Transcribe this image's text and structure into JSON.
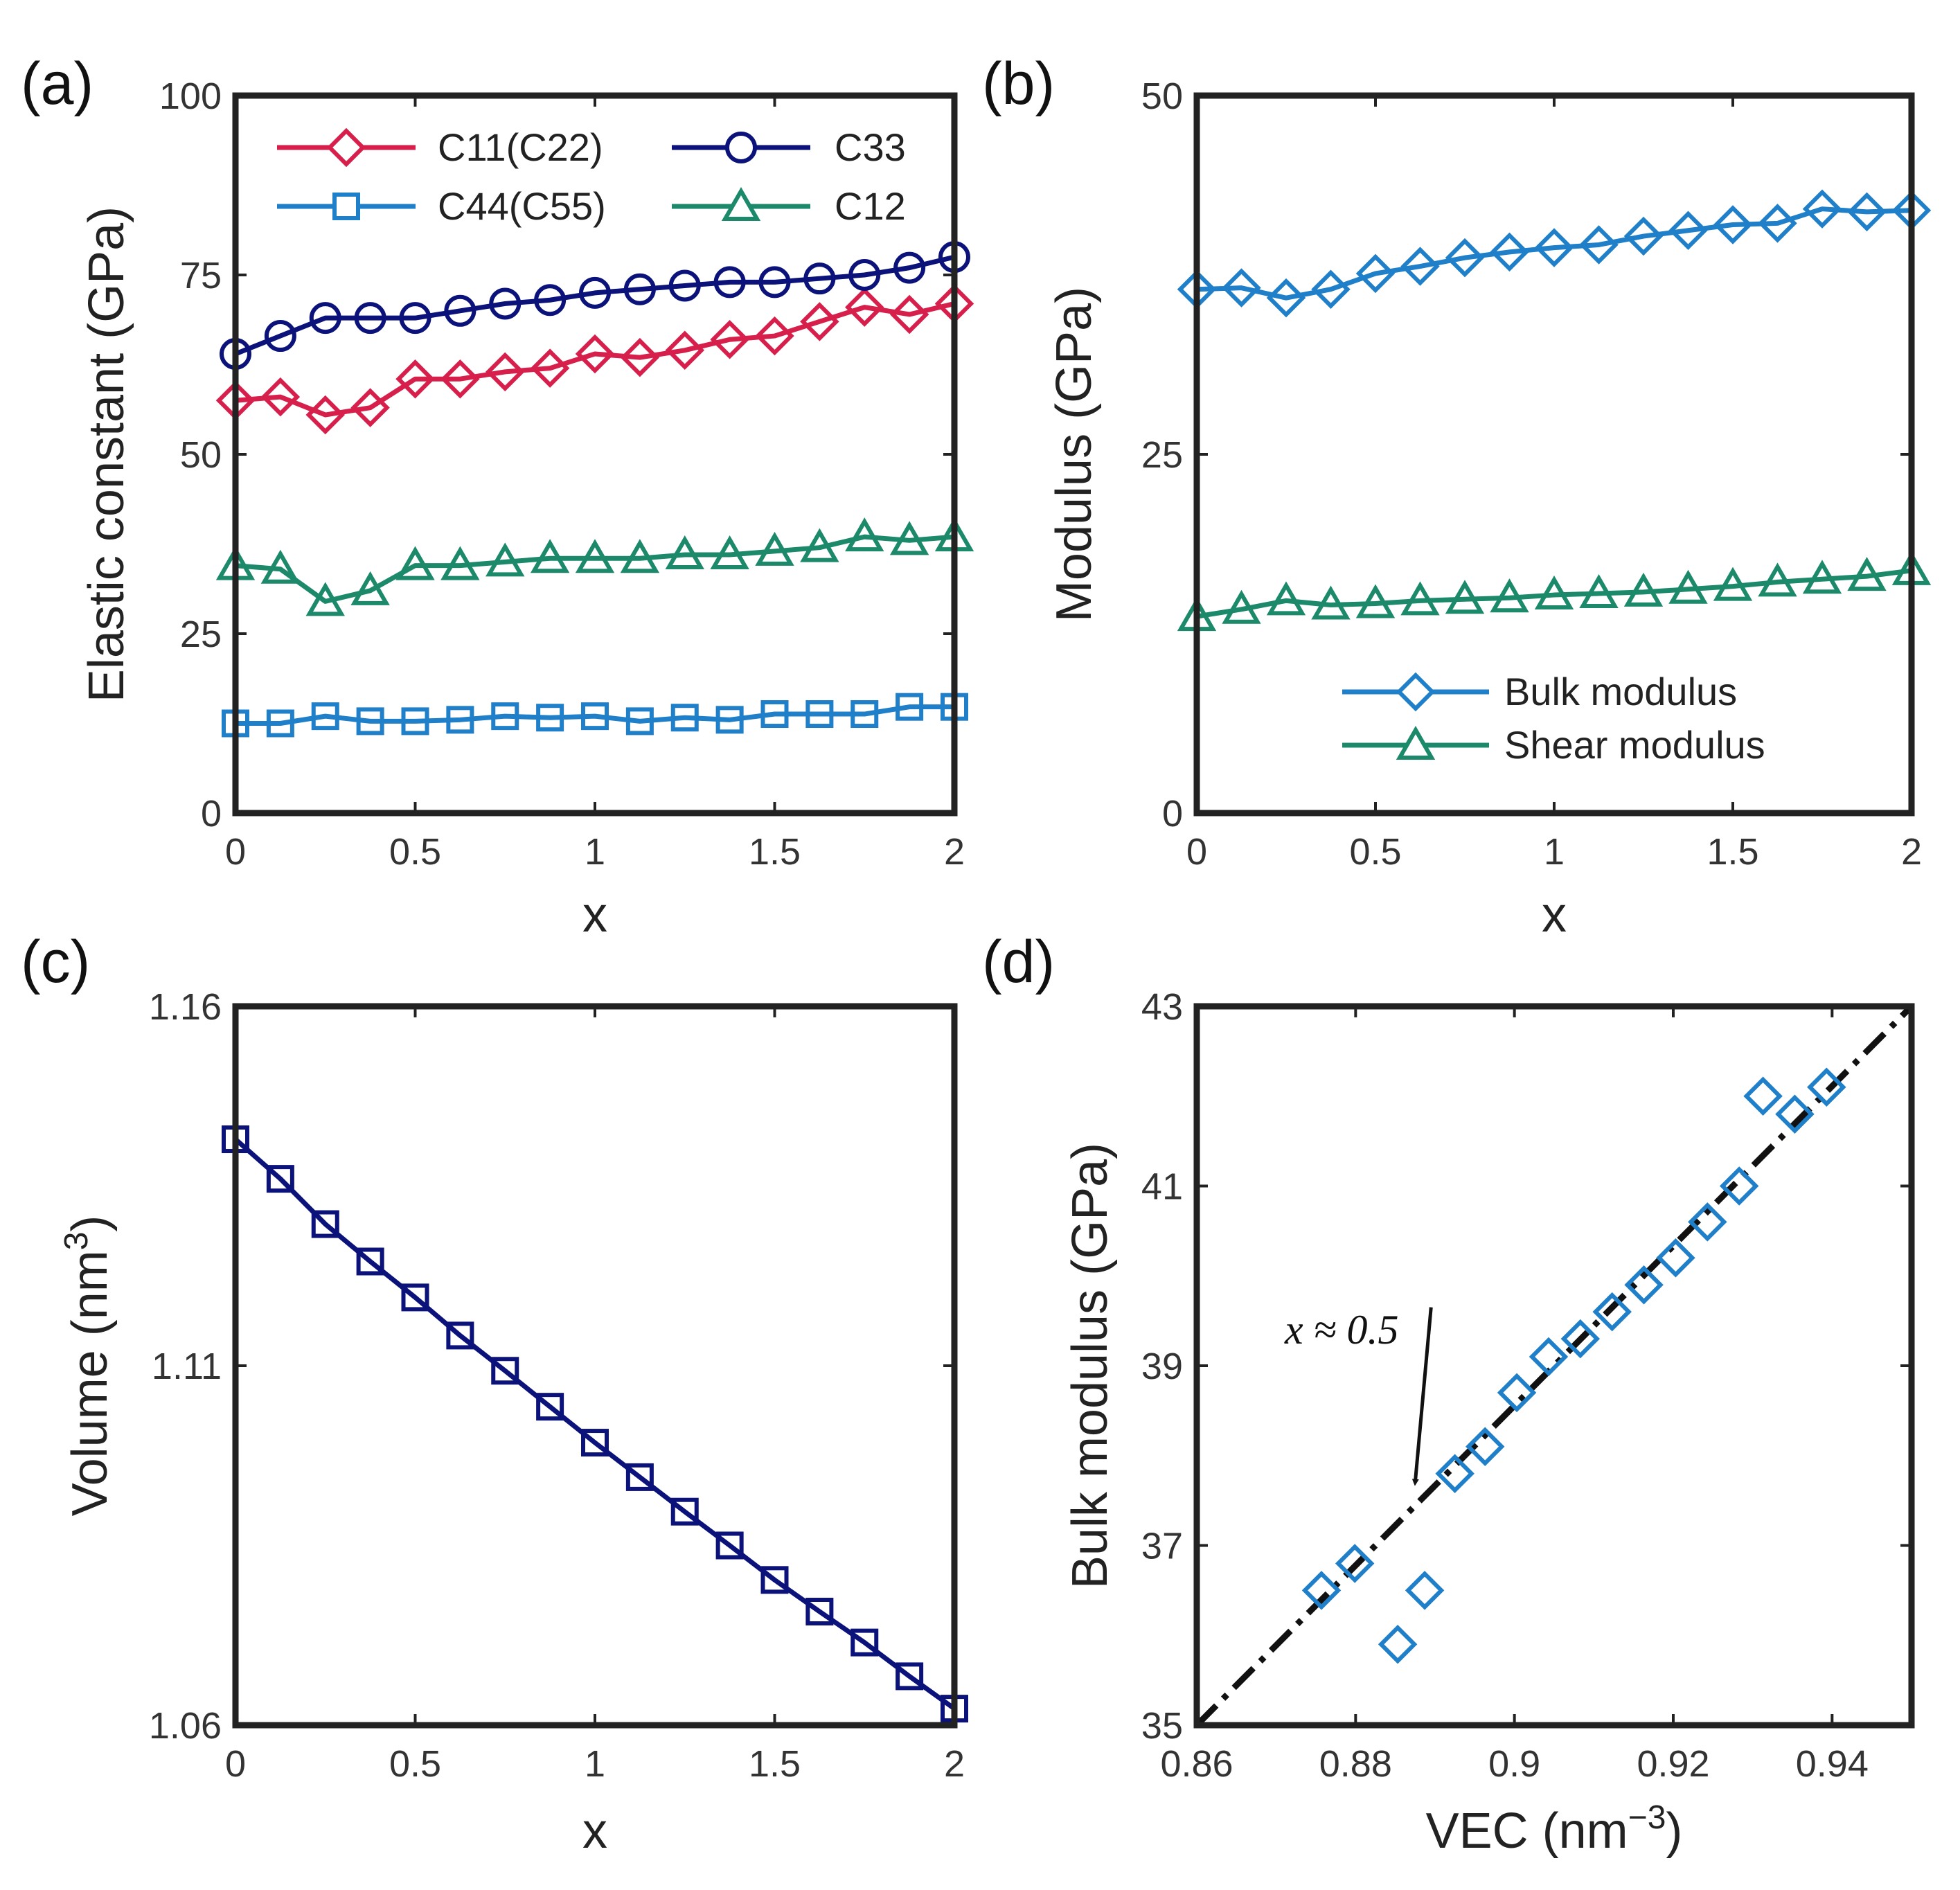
{
  "colors": {
    "red": "#d6204b",
    "navy": "#0b127a",
    "blue": "#1f7fc8",
    "green": "#1c8a6a",
    "black": "#111111"
  },
  "chart_data": [
    {
      "panel": "(a)",
      "type": "line",
      "xlabel": "x",
      "ylabel": "Elastic constant (GPa)",
      "xlim": [
        0,
        2
      ],
      "ylim": [
        0,
        100
      ],
      "xticks": [
        "0",
        "0.5",
        "1",
        "1.5",
        "2"
      ],
      "yticks": [
        "0",
        "25",
        "50",
        "75",
        "100"
      ],
      "legend_position": "top",
      "x": [
        0,
        0.125,
        0.25,
        0.375,
        0.5,
        0.625,
        0.75,
        0.875,
        1.0,
        1.125,
        1.25,
        1.375,
        1.5,
        1.625,
        1.75,
        1.875,
        2.0
      ],
      "series": [
        {
          "name": "C11(C22)",
          "marker": "diamond",
          "color": "red",
          "values": [
            57.5,
            58.0,
            55.5,
            56.5,
            60.5,
            60.5,
            61.5,
            62.0,
            64.0,
            63.5,
            64.5,
            66.0,
            66.5,
            68.5,
            70.5,
            69.5,
            71.0
          ]
        },
        {
          "name": "C33",
          "marker": "circle",
          "color": "navy",
          "values": [
            64.0,
            66.5,
            69.0,
            69.0,
            69.0,
            70.0,
            71.0,
            71.5,
            72.5,
            73.0,
            73.5,
            74.0,
            74.0,
            74.5,
            75.0,
            76.0,
            77.5
          ]
        },
        {
          "name": "C44(C55)",
          "marker": "square",
          "color": "blue",
          "values": [
            12.5,
            12.5,
            13.5,
            12.8,
            12.8,
            13.0,
            13.5,
            13.3,
            13.5,
            12.8,
            13.3,
            13.0,
            13.8,
            13.8,
            13.8,
            14.8,
            14.8
          ]
        },
        {
          "name": "C12",
          "marker": "triangle",
          "color": "green",
          "values": [
            34.5,
            34.0,
            29.5,
            31.0,
            34.5,
            34.5,
            35.0,
            35.5,
            35.5,
            35.5,
            36.0,
            36.0,
            36.5,
            37.0,
            38.5,
            38.0,
            38.5
          ]
        }
      ]
    },
    {
      "panel": "(b)",
      "type": "line",
      "xlabel": "x",
      "ylabel": "Modulus (GPa)",
      "xlim": [
        0,
        2
      ],
      "ylim": [
        0,
        50
      ],
      "xticks": [
        "0",
        "0.5",
        "1",
        "1.5",
        "2"
      ],
      "yticks": [
        "0",
        "25",
        "50"
      ],
      "legend_position": "bottom-right",
      "x": [
        0,
        0.125,
        0.25,
        0.375,
        0.5,
        0.625,
        0.75,
        0.875,
        1.0,
        1.125,
        1.25,
        1.375,
        1.5,
        1.625,
        1.75,
        1.875,
        2.0
      ],
      "series": [
        {
          "name": "Bulk modulus",
          "marker": "diamond",
          "color": "blue",
          "values": [
            36.5,
            36.6,
            35.9,
            36.5,
            37.6,
            38.1,
            38.7,
            39.1,
            39.4,
            39.6,
            40.2,
            40.6,
            41.0,
            41.1,
            42.1,
            41.9,
            42.0
          ]
        },
        {
          "name": "Shear modulus",
          "marker": "triangle",
          "color": "green",
          "values": [
            13.7,
            14.2,
            14.8,
            14.5,
            14.6,
            14.8,
            14.9,
            15.0,
            15.2,
            15.3,
            15.4,
            15.6,
            15.8,
            16.1,
            16.3,
            16.5,
            16.9
          ]
        }
      ]
    },
    {
      "panel": "(c)",
      "type": "line",
      "xlabel": "x",
      "ylabel": "Volume (nm",
      "ylabel_sup": "3",
      "ylabel_end": ")",
      "xlim": [
        0,
        2
      ],
      "ylim": [
        1.06,
        1.16
      ],
      "xticks": [
        "0",
        "0.5",
        "1",
        "1.5",
        "2"
      ],
      "yticks": [
        "1.06",
        "1.11",
        "1.16"
      ],
      "x": [
        0,
        0.125,
        0.25,
        0.375,
        0.5,
        0.625,
        0.75,
        0.875,
        1.0,
        1.125,
        1.25,
        1.375,
        1.5,
        1.625,
        1.75,
        1.875,
        2.0
      ],
      "series": [
        {
          "name": "Volume",
          "marker": "square",
          "color": "navy",
          "values": [
            1.1415,
            1.136,
            1.1297,
            1.1245,
            1.1195,
            1.1142,
            1.1093,
            1.1043,
            1.0993,
            1.0945,
            1.0897,
            1.085,
            1.0802,
            1.0758,
            1.0715,
            1.0668,
            1.0623
          ]
        }
      ]
    },
    {
      "panel": "(d)",
      "type": "scatter",
      "xlabel": "VEC (nm",
      "xlabel_sup": "−3",
      "xlabel_end": ")",
      "ylabel": "Bulk modulus (GPa)",
      "xlim": [
        0.86,
        0.95
      ],
      "ylim": [
        35,
        43
      ],
      "xticks": [
        "0.86",
        "0.88",
        "0.9",
        "0.92",
        "0.94"
      ],
      "yticks": [
        "35",
        "37",
        "39",
        "41",
        "43"
      ],
      "series": [
        {
          "name": "Bulk modulus",
          "marker": "diamond",
          "color": "blue",
          "x": [
            0.8757,
            0.8799,
            0.8853,
            0.8887,
            0.8925,
            0.8963,
            0.9003,
            0.9043,
            0.9083,
            0.9123,
            0.9163,
            0.9203,
            0.9243,
            0.9283,
            0.9313,
            0.9353,
            0.9393
          ],
          "y": [
            36.5,
            36.8,
            35.9,
            36.5,
            37.8,
            38.1,
            38.7,
            39.1,
            39.3,
            39.6,
            39.9,
            40.2,
            40.6,
            41.0,
            42.0,
            41.8,
            42.1
          ]
        }
      ],
      "fit_line": {
        "style": "dash-dot",
        "color": "black",
        "x": [
          0.86,
          0.95
        ],
        "y": [
          35.0,
          43.0
        ]
      },
      "annotation": {
        "text": "x ≈ 0.5",
        "arrow_from": [
          0.8895,
          39.65
        ],
        "arrow_to": [
          0.8875,
          37.7
        ]
      }
    }
  ],
  "panel_labels": [
    "(a)",
    "(b)",
    "(c)",
    "(d)"
  ]
}
